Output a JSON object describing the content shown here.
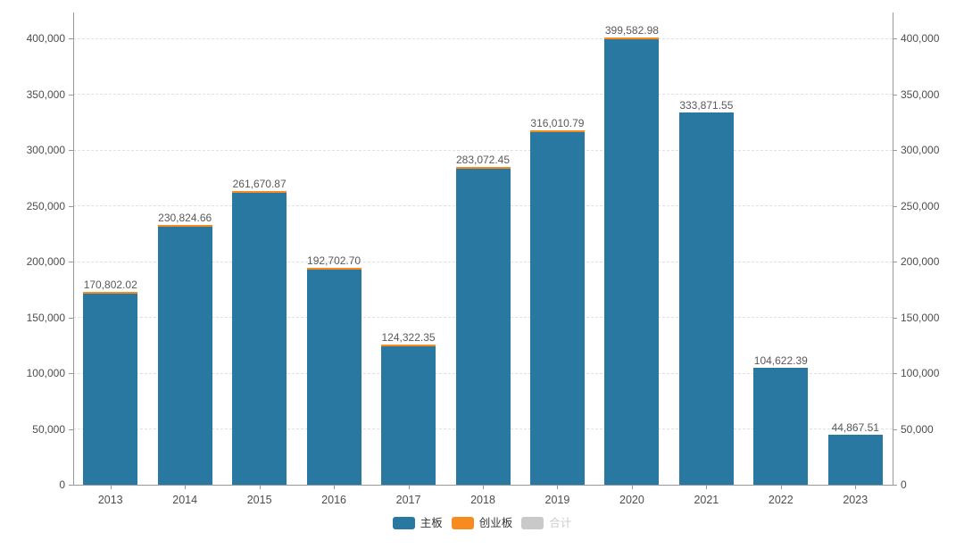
{
  "chart_data": {
    "type": "bar",
    "stacked": true,
    "title": "",
    "categories": [
      "2013",
      "2014",
      "2015",
      "2016",
      "2017",
      "2018",
      "2019",
      "2020",
      "2021",
      "2022",
      "2023"
    ],
    "series": [
      {
        "name": "主板",
        "color": "#2878a2",
        "values": [
          170802.02,
          230824.66,
          261670.87,
          192702.7,
          124322.35,
          283072.45,
          316010.79,
          399582.98,
          333871.55,
          104622.39,
          44867.51
        ],
        "value_labels": [
          "170,802.02",
          "230,824.66",
          "261,670.87",
          "192,702.70",
          "124,322.35",
          "283,072.45",
          "316,010.79",
          "399,582.98",
          "333,871.55",
          "104,622.39",
          "44,867.51"
        ]
      },
      {
        "name": "创业板",
        "color": "#f68b1f",
        "visible_strip": [
          true,
          true,
          true,
          true,
          true,
          true,
          true,
          true,
          false,
          false,
          false
        ]
      },
      {
        "name": "合计",
        "color": "#c9c9c9",
        "disabled": true
      }
    ],
    "legend": {
      "position": "bottom",
      "items": [
        {
          "label": "主板",
          "color": "#2878a2",
          "enabled": true,
          "text_color": "#333333"
        },
        {
          "label": "创业板",
          "color": "#f68b1f",
          "enabled": true,
          "text_color": "#333333"
        },
        {
          "label": "合计",
          "color": "#c9c9c9",
          "enabled": false,
          "text_color": "#cccccc"
        }
      ]
    },
    "y_axis": {
      "min": 0,
      "max": 400000,
      "tick_interval": 50000,
      "tick_labels": [
        "0",
        "50,000",
        "100,000",
        "150,000",
        "200,000",
        "250,000",
        "300,000",
        "350,000",
        "400,000"
      ],
      "sides": [
        "left",
        "right"
      ],
      "gridlines": "dashed"
    },
    "x_axis": {
      "tick_labels": [
        "2013",
        "2014",
        "2015",
        "2016",
        "2017",
        "2018",
        "2019",
        "2020",
        "2021",
        "2022",
        "2023"
      ]
    }
  },
  "colors": {
    "axis_line": "#999999",
    "gridline": "#e0e0e0",
    "tick_text": "#4d4d4d",
    "value_label_text": "#595959",
    "background": "#ffffff"
  }
}
